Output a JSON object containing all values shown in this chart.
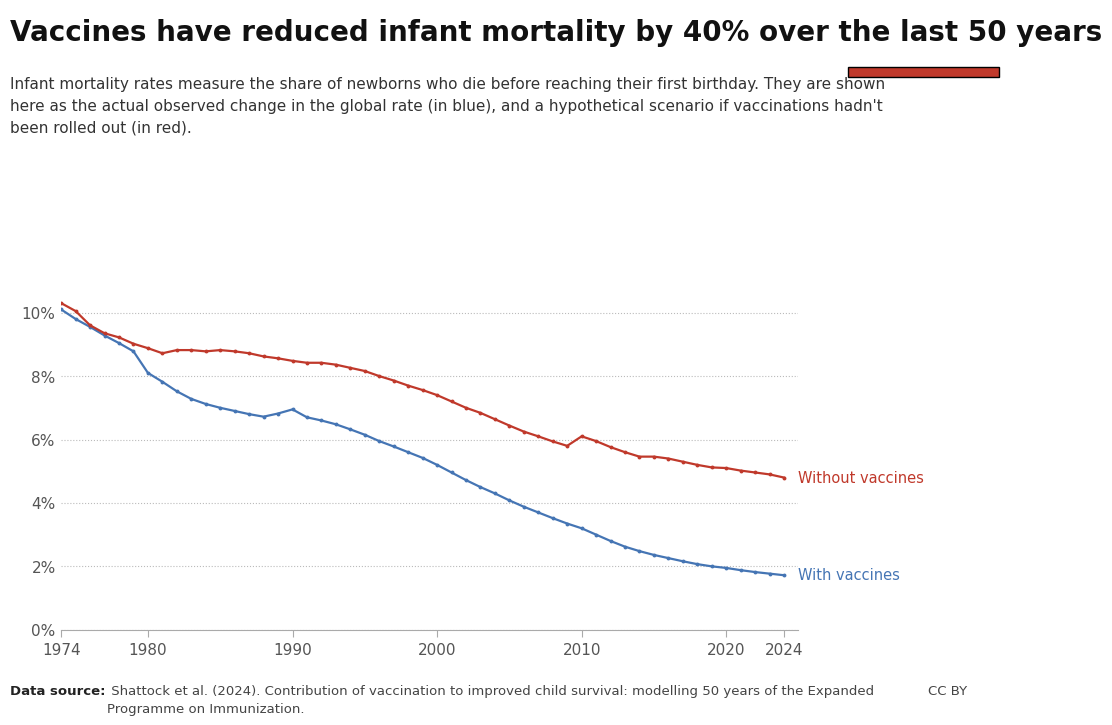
{
  "title": "Vaccines have reduced infant mortality by 40% over the last 50 years",
  "subtitle": "Infant mortality rates measure the share of newborns who die before reaching their first birthday. They are shown\nhere as the actual observed change in the global rate (in blue), and a hypothetical scenario if vaccinations hadn't\nbeen rolled out (in red).",
  "datasource_bold": "Data source:",
  "datasource_rest": " Shattock et al. (2024). Contribution of vaccination to improved child survival: modelling 50 years of the Expanded\nProgramme on Immunization.",
  "ccby": "CC BY",
  "with_vaccines_years": [
    1974,
    1975,
    1976,
    1977,
    1978,
    1979,
    1980,
    1981,
    1982,
    1983,
    1984,
    1985,
    1986,
    1987,
    1988,
    1989,
    1990,
    1991,
    1992,
    1993,
    1994,
    1995,
    1996,
    1997,
    1998,
    1999,
    2000,
    2001,
    2002,
    2003,
    2004,
    2005,
    2006,
    2007,
    2008,
    2009,
    2010,
    2011,
    2012,
    2013,
    2014,
    2015,
    2016,
    2017,
    2018,
    2019,
    2020,
    2021,
    2022,
    2023,
    2024
  ],
  "with_vaccines_vals": [
    0.101,
    0.098,
    0.0955,
    0.0928,
    0.0904,
    0.0878,
    0.081,
    0.0782,
    0.0752,
    0.0728,
    0.0712,
    0.07,
    0.069,
    0.068,
    0.0672,
    0.0682,
    0.0695,
    0.067,
    0.066,
    0.0648,
    0.0632,
    0.0615,
    0.0595,
    0.0578,
    0.056,
    0.0542,
    0.052,
    0.0496,
    0.0472,
    0.045,
    0.043,
    0.0408,
    0.0388,
    0.037,
    0.0352,
    0.0335,
    0.032,
    0.03,
    0.028,
    0.0262,
    0.0248,
    0.0236,
    0.0226,
    0.0216,
    0.0207,
    0.02,
    0.0195,
    0.0188,
    0.0182,
    0.0177,
    0.0172
  ],
  "without_vaccines_years": [
    1974,
    1975,
    1976,
    1977,
    1978,
    1979,
    1980,
    1981,
    1982,
    1983,
    1984,
    1985,
    1986,
    1987,
    1988,
    1989,
    1990,
    1991,
    1992,
    1993,
    1994,
    1995,
    1996,
    1997,
    1998,
    1999,
    2000,
    2001,
    2002,
    2003,
    2004,
    2005,
    2006,
    2007,
    2008,
    2009,
    2010,
    2011,
    2012,
    2013,
    2014,
    2015,
    2016,
    2017,
    2018,
    2019,
    2020,
    2021,
    2022,
    2023,
    2024
  ],
  "without_vaccines_vals": [
    0.103,
    0.1005,
    0.096,
    0.0935,
    0.0922,
    0.0902,
    0.0888,
    0.0872,
    0.0882,
    0.0882,
    0.0878,
    0.0882,
    0.0878,
    0.0872,
    0.0862,
    0.0856,
    0.0848,
    0.0842,
    0.0842,
    0.0836,
    0.0826,
    0.0816,
    0.08,
    0.0786,
    0.077,
    0.0756,
    0.074,
    0.072,
    0.07,
    0.0684,
    0.0664,
    0.0644,
    0.0625,
    0.061,
    0.0594,
    0.058,
    0.061,
    0.0595,
    0.0576,
    0.056,
    0.0546,
    0.0546,
    0.054,
    0.053,
    0.052,
    0.0512,
    0.051,
    0.0502,
    0.0496,
    0.049,
    0.048
  ],
  "with_color": "#4575b4",
  "without_color": "#c0392b",
  "background_color": "#ffffff",
  "label_with": "With vaccines",
  "label_without": "Without vaccines",
  "ylim": [
    0,
    0.114
  ],
  "xlim": [
    1974,
    2025
  ],
  "yticks": [
    0,
    0.02,
    0.04,
    0.06,
    0.08,
    0.1
  ],
  "ytick_labels": [
    "0%",
    "2%",
    "4%",
    "6%",
    "8%",
    "10%"
  ],
  "xticks": [
    1974,
    1980,
    1990,
    2000,
    2010,
    2020,
    2024
  ],
  "owid_bg": "#1a3a5c",
  "owid_red": "#c0392b",
  "title_fontsize": 20,
  "subtitle_fontsize": 11,
  "axis_fontsize": 11
}
